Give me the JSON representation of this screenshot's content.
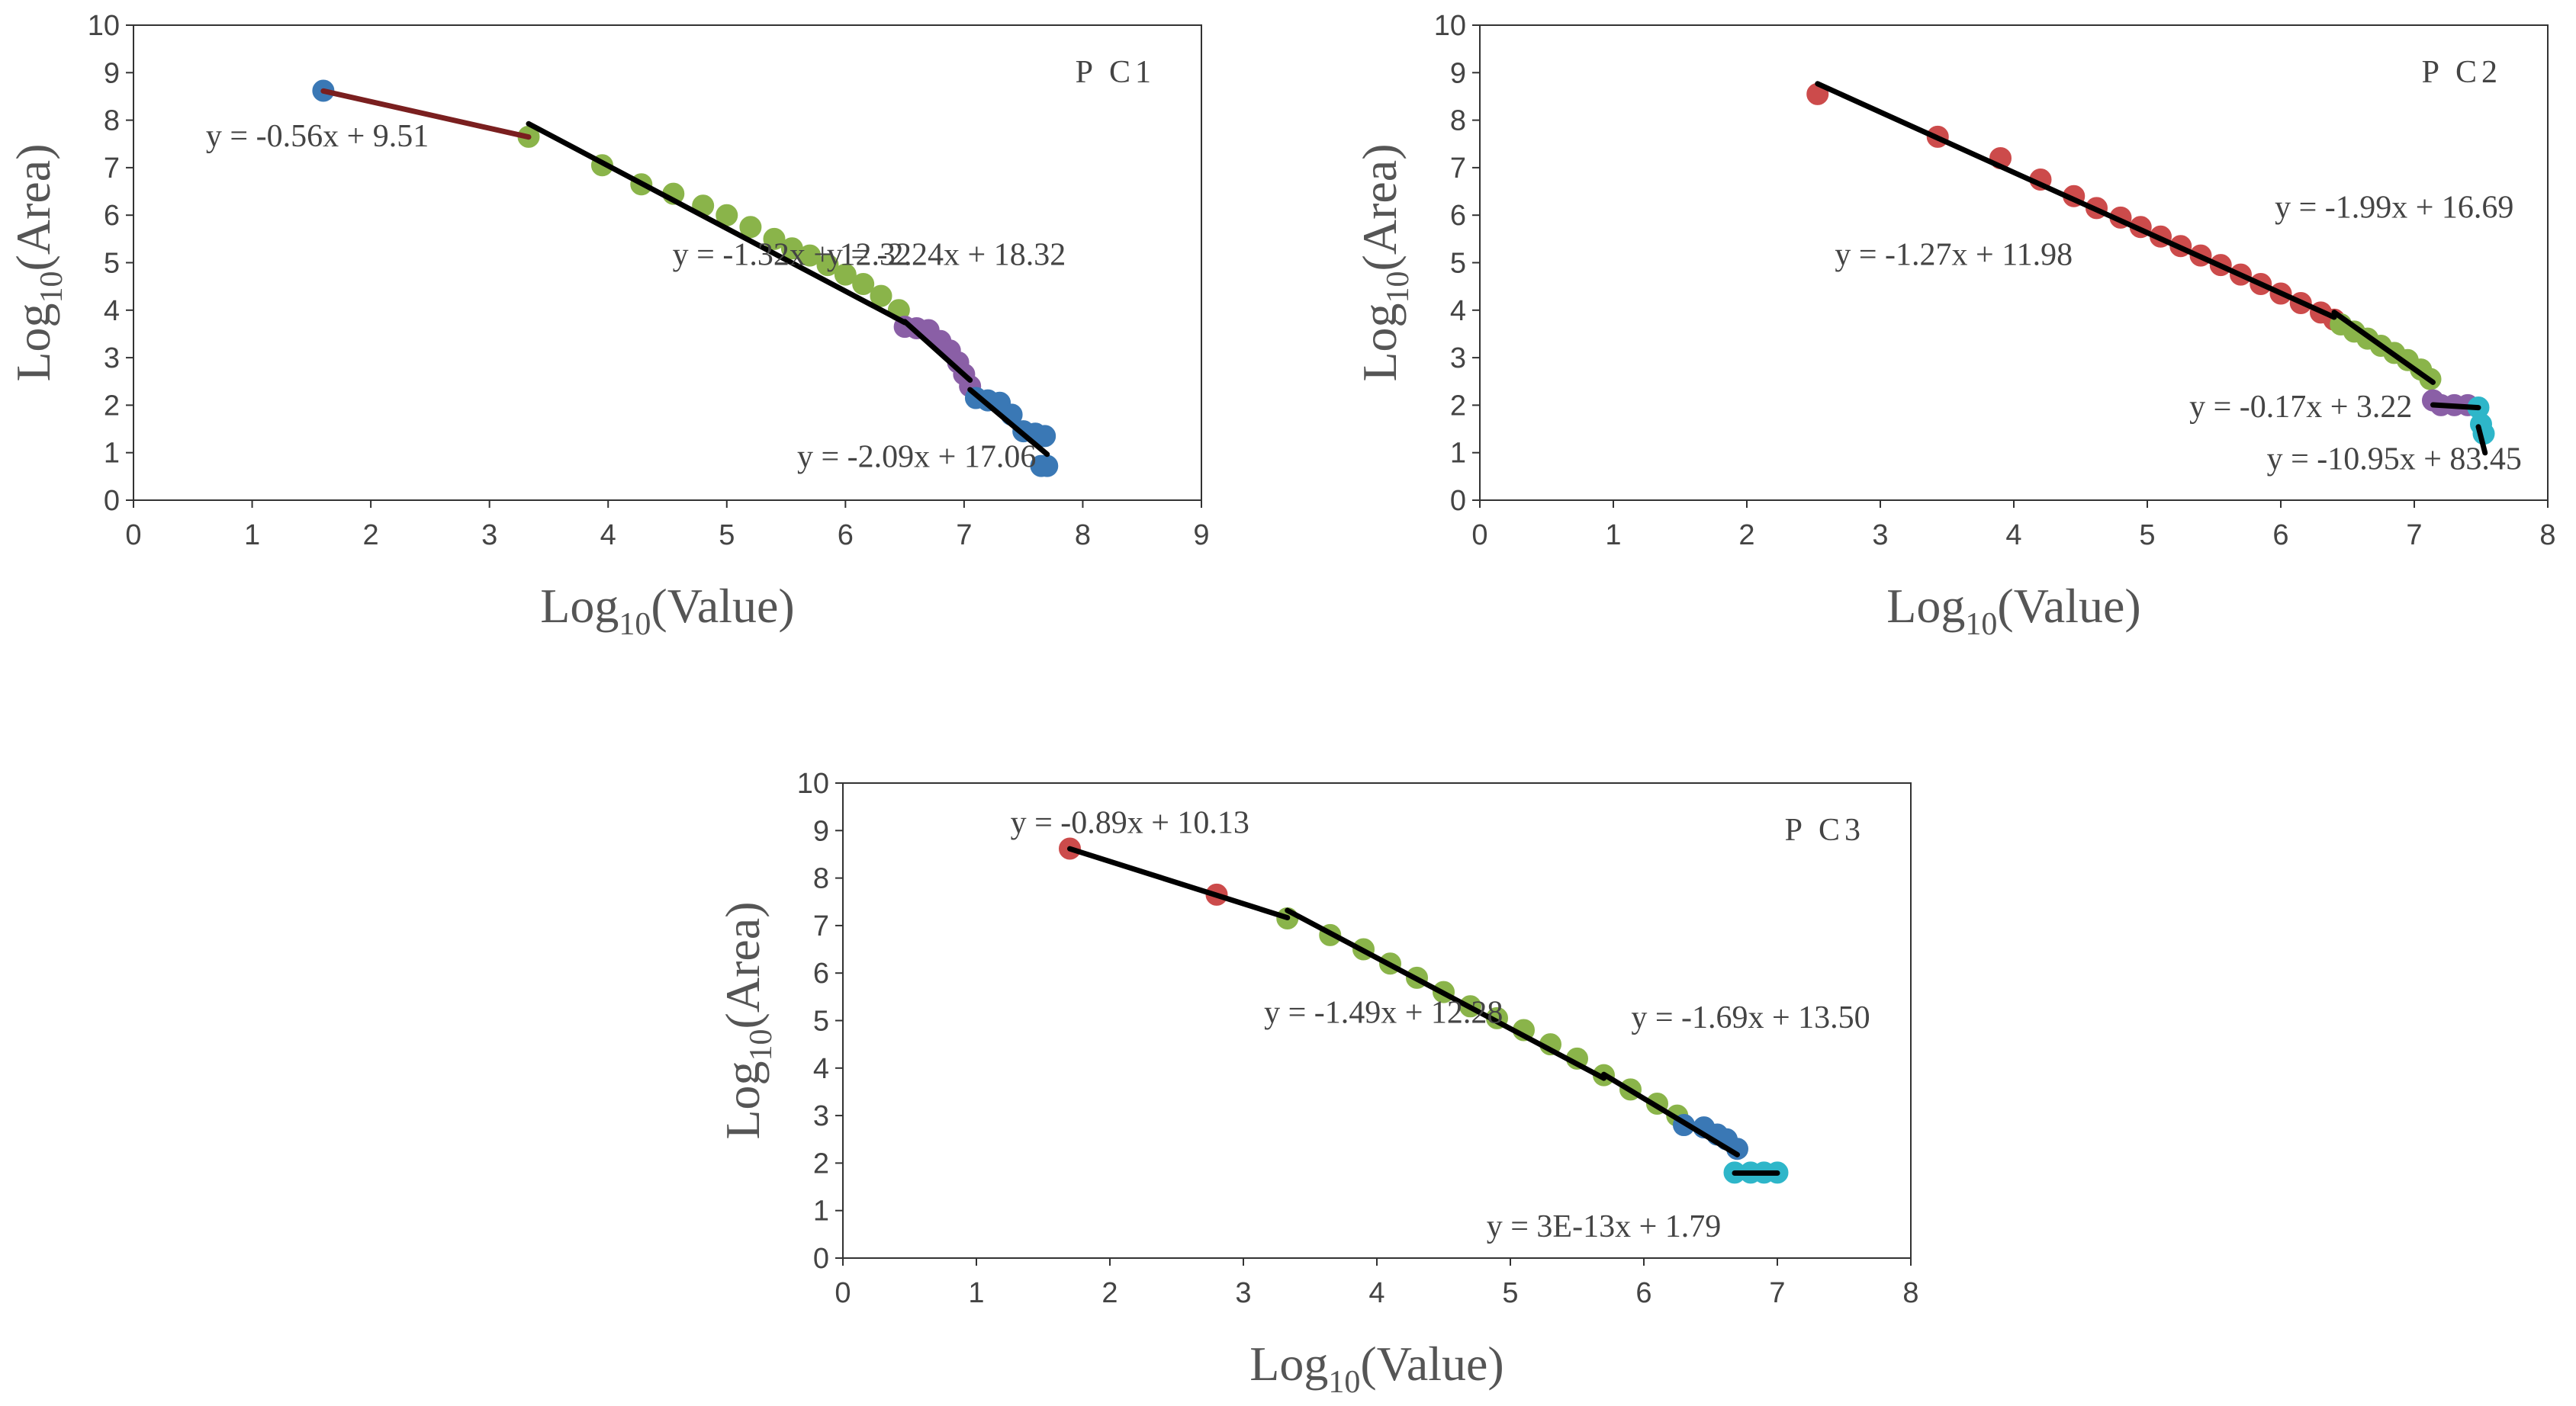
{
  "chart_data": [
    {
      "type": "scatter",
      "panel_label": "PC1",
      "xlabel": "Log10(Value)",
      "ylabel": "Log10(Area)",
      "xlim": [
        0,
        9
      ],
      "ylim": [
        0,
        10
      ],
      "xticks": [
        0,
        1,
        2,
        3,
        4,
        5,
        6,
        7,
        8,
        9
      ],
      "yticks": [
        0,
        1,
        2,
        3,
        4,
        5,
        6,
        7,
        8,
        9,
        10
      ],
      "grid": false,
      "series": [
        {
          "color": "#3a78b5",
          "points": [
            [
              1.6,
              8.62
            ]
          ]
        },
        {
          "color": "#8ab44a",
          "points": [
            [
              3.33,
              7.65
            ],
            [
              3.95,
              7.05
            ],
            [
              4.28,
              6.65
            ],
            [
              4.55,
              6.45
            ],
            [
              4.8,
              6.2
            ],
            [
              5.0,
              6.0
            ],
            [
              5.2,
              5.75
            ],
            [
              5.4,
              5.5
            ],
            [
              5.55,
              5.3
            ],
            [
              5.7,
              5.15
            ],
            [
              5.85,
              4.95
            ],
            [
              6.0,
              4.75
            ],
            [
              6.15,
              4.55
            ],
            [
              6.3,
              4.3
            ],
            [
              6.45,
              4.0
            ]
          ]
        },
        {
          "color": "#8a5fa6",
          "points": [
            [
              6.5,
              3.65
            ],
            [
              6.6,
              3.62
            ],
            [
              6.7,
              3.58
            ],
            [
              6.8,
              3.35
            ],
            [
              6.88,
              3.15
            ],
            [
              6.95,
              2.9
            ],
            [
              7.0,
              2.65
            ],
            [
              7.05,
              2.4
            ]
          ]
        },
        {
          "color": "#3a78b5",
          "points": [
            [
              7.1,
              2.15
            ],
            [
              7.2,
              2.1
            ],
            [
              7.3,
              2.05
            ],
            [
              7.4,
              1.8
            ],
            [
              7.5,
              1.45
            ],
            [
              7.6,
              1.4
            ],
            [
              7.68,
              1.35
            ],
            [
              7.7,
              0.72
            ],
            [
              7.65,
              0.72
            ]
          ]
        }
      ],
      "fit_lines": [
        {
          "equation": "y = -0.56x + 9.51",
          "slope": -0.56,
          "intercept": 9.51,
          "x_range": [
            1.6,
            3.33
          ],
          "color": "#7a1f1f"
        },
        {
          "equation": "y = -1.32x + 12.32",
          "slope": -1.32,
          "intercept": 12.32,
          "x_range": [
            3.33,
            6.5
          ],
          "color": "#000000"
        },
        {
          "equation": "y = -2.24x + 18.32",
          "slope": -2.24,
          "intercept": 18.32,
          "x_range": [
            6.5,
            7.05
          ],
          "color": "#000000"
        },
        {
          "equation": "y = -2.09x + 17.06",
          "slope": -2.09,
          "intercept": 17.06,
          "x_range": [
            7.05,
            7.7
          ],
          "color": "#000000"
        }
      ]
    },
    {
      "type": "scatter",
      "panel_label": "PC2",
      "xlabel": "Log10(Value)",
      "ylabel": "Log10(Area)",
      "xlim": [
        0,
        8
      ],
      "ylim": [
        0,
        10
      ],
      "xticks": [
        0,
        1,
        2,
        3,
        4,
        5,
        6,
        7,
        8
      ],
      "yticks": [
        0,
        1,
        2,
        3,
        4,
        5,
        6,
        7,
        8,
        9,
        10
      ],
      "grid": false,
      "series": [
        {
          "color": "#cc4b4b",
          "points": [
            [
              2.53,
              8.55
            ],
            [
              3.43,
              7.65
            ],
            [
              3.9,
              7.2
            ],
            [
              4.2,
              6.75
            ],
            [
              4.45,
              6.4
            ],
            [
              4.62,
              6.15
            ],
            [
              4.8,
              5.95
            ],
            [
              4.95,
              5.75
            ],
            [
              5.1,
              5.55
            ],
            [
              5.25,
              5.35
            ],
            [
              5.4,
              5.15
            ],
            [
              5.55,
              4.95
            ],
            [
              5.7,
              4.75
            ],
            [
              5.85,
              4.55
            ],
            [
              6.0,
              4.35
            ],
            [
              6.15,
              4.15
            ],
            [
              6.3,
              3.95
            ],
            [
              6.4,
              3.8
            ]
          ]
        },
        {
          "color": "#8ab44a",
          "points": [
            [
              6.45,
              3.7
            ],
            [
              6.55,
              3.55
            ],
            [
              6.65,
              3.4
            ],
            [
              6.75,
              3.25
            ],
            [
              6.85,
              3.1
            ],
            [
              6.95,
              2.95
            ],
            [
              7.05,
              2.75
            ],
            [
              7.12,
              2.55
            ]
          ]
        },
        {
          "color": "#8a5fa6",
          "points": [
            [
              7.14,
              2.1
            ],
            [
              7.2,
              2.0
            ],
            [
              7.3,
              2.0
            ],
            [
              7.4,
              2.0
            ]
          ]
        },
        {
          "color": "#2eb6c9",
          "points": [
            [
              7.48,
              1.95
            ],
            [
              7.5,
              1.6
            ],
            [
              7.52,
              1.4
            ]
          ]
        }
      ],
      "fit_lines": [
        {
          "equation": "y = -1.27x + 11.98",
          "slope": -1.27,
          "intercept": 11.98,
          "x_range": [
            2.53,
            6.4
          ],
          "color": "#000000"
        },
        {
          "equation": "y = -1.99x + 16.69",
          "slope": -1.99,
          "intercept": 16.69,
          "x_range": [
            6.4,
            7.14
          ],
          "color": "#000000"
        },
        {
          "equation": "y = -0.17x + 3.22",
          "slope": -0.17,
          "intercept": 3.22,
          "x_range": [
            7.14,
            7.48
          ],
          "color": "#000000"
        },
        {
          "equation": "y = -10.95x + 83.45",
          "slope": -10.95,
          "intercept": 83.45,
          "x_range": [
            7.48,
            7.53
          ],
          "color": "#000000"
        }
      ]
    },
    {
      "type": "scatter",
      "panel_label": "PC3",
      "xlabel": "Log10(Value)",
      "ylabel": "Log10(Area)",
      "xlim": [
        0,
        8
      ],
      "ylim": [
        0,
        10
      ],
      "xticks": [
        0,
        1,
        2,
        3,
        4,
        5,
        6,
        7,
        8
      ],
      "yticks": [
        0,
        1,
        2,
        3,
        4,
        5,
        6,
        7,
        8,
        9,
        10
      ],
      "grid": false,
      "series": [
        {
          "color": "#cc4b4b",
          "points": [
            [
              1.7,
              8.62
            ],
            [
              2.8,
              7.65
            ]
          ]
        },
        {
          "color": "#8ab44a",
          "points": [
            [
              3.33,
              7.15
            ],
            [
              3.65,
              6.8
            ],
            [
              3.9,
              6.5
            ],
            [
              4.1,
              6.2
            ],
            [
              4.3,
              5.9
            ],
            [
              4.5,
              5.6
            ],
            [
              4.7,
              5.3
            ],
            [
              4.9,
              5.05
            ],
            [
              5.1,
              4.8
            ],
            [
              5.3,
              4.5
            ],
            [
              5.5,
              4.2
            ],
            [
              5.7,
              3.85
            ],
            [
              5.9,
              3.55
            ],
            [
              6.1,
              3.25
            ],
            [
              6.25,
              3.0
            ]
          ]
        },
        {
          "color": "#3a78b5",
          "points": [
            [
              6.3,
              2.8
            ],
            [
              6.45,
              2.75
            ],
            [
              6.55,
              2.6
            ],
            [
              6.62,
              2.5
            ],
            [
              6.7,
              2.3
            ]
          ]
        },
        {
          "color": "#2eb6c9",
          "points": [
            [
              6.68,
              1.8
            ],
            [
              6.8,
              1.8
            ],
            [
              6.9,
              1.8
            ],
            [
              7.0,
              1.8
            ]
          ]
        }
      ],
      "fit_lines": [
        {
          "equation": "y = -0.89x + 10.13",
          "slope": -0.89,
          "intercept": 10.13,
          "x_range": [
            1.7,
            3.33
          ],
          "color": "#000000"
        },
        {
          "equation": "y = -1.49x + 12.28",
          "slope": -1.49,
          "intercept": 12.28,
          "x_range": [
            3.33,
            5.7
          ],
          "color": "#000000"
        },
        {
          "equation": "y = -1.69x + 13.50",
          "slope": -1.69,
          "intercept": 13.5,
          "x_range": [
            5.7,
            6.7
          ],
          "color": "#000000"
        },
        {
          "equation": "y = 3E-13x + 1.79",
          "slope": 0,
          "intercept": 1.79,
          "x_range": [
            6.68,
            7.0
          ],
          "color": "#000000"
        }
      ]
    }
  ]
}
